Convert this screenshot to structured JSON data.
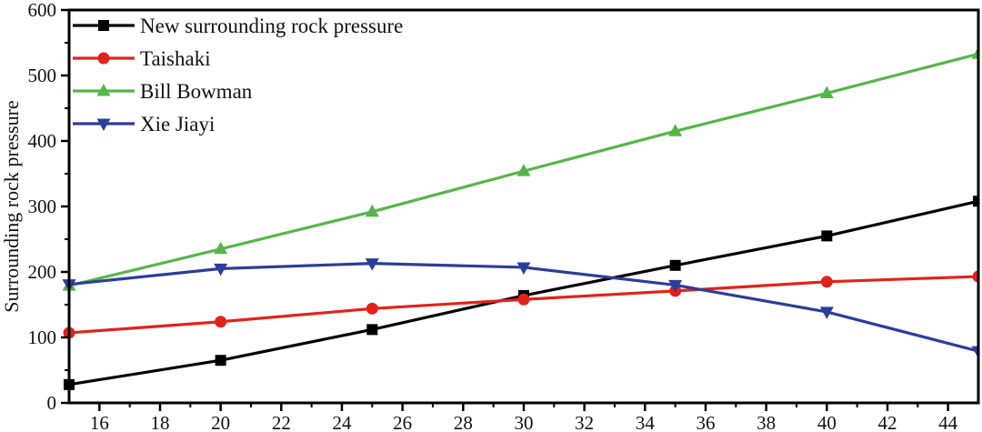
{
  "chart_data": {
    "type": "line",
    "x": [
      15,
      20,
      25,
      30,
      35,
      40,
      45
    ],
    "series": [
      {
        "name": "New surrounding rock pressure",
        "color": "#000000",
        "marker": "square",
        "values": [
          28,
          65,
          112,
          164,
          210,
          255,
          308
        ]
      },
      {
        "name": "Taishaki",
        "color": "#e2231a",
        "marker": "circle",
        "values": [
          107,
          124,
          144,
          158,
          171,
          185,
          193
        ]
      },
      {
        "name": "Bill Bowman",
        "color": "#56b649",
        "marker": "triangle-up",
        "values": [
          179,
          235,
          292,
          354,
          415,
          473,
          533
        ]
      },
      {
        "name": "Xie Jiayi",
        "color": "#2c3d9b",
        "marker": "triangle-down",
        "values": [
          181,
          205,
          213,
          207,
          180,
          139,
          79
        ]
      }
    ],
    "title": "",
    "xlabel": "",
    "ylabel": "Surrounding rock pressure",
    "xlim": [
      15,
      45
    ],
    "ylim": [
      0,
      600
    ],
    "x_major_ticks": [
      16,
      18,
      20,
      22,
      24,
      26,
      28,
      30,
      32,
      34,
      36,
      38,
      40,
      42,
      44
    ],
    "x_minor_step": 1,
    "y_major_ticks": [
      0,
      100,
      200,
      300,
      400,
      500,
      600
    ],
    "y_minor_step": 50,
    "grid": false,
    "legend_position": "top-left",
    "frame_color": "#000000",
    "background_color": "#ffffff"
  }
}
